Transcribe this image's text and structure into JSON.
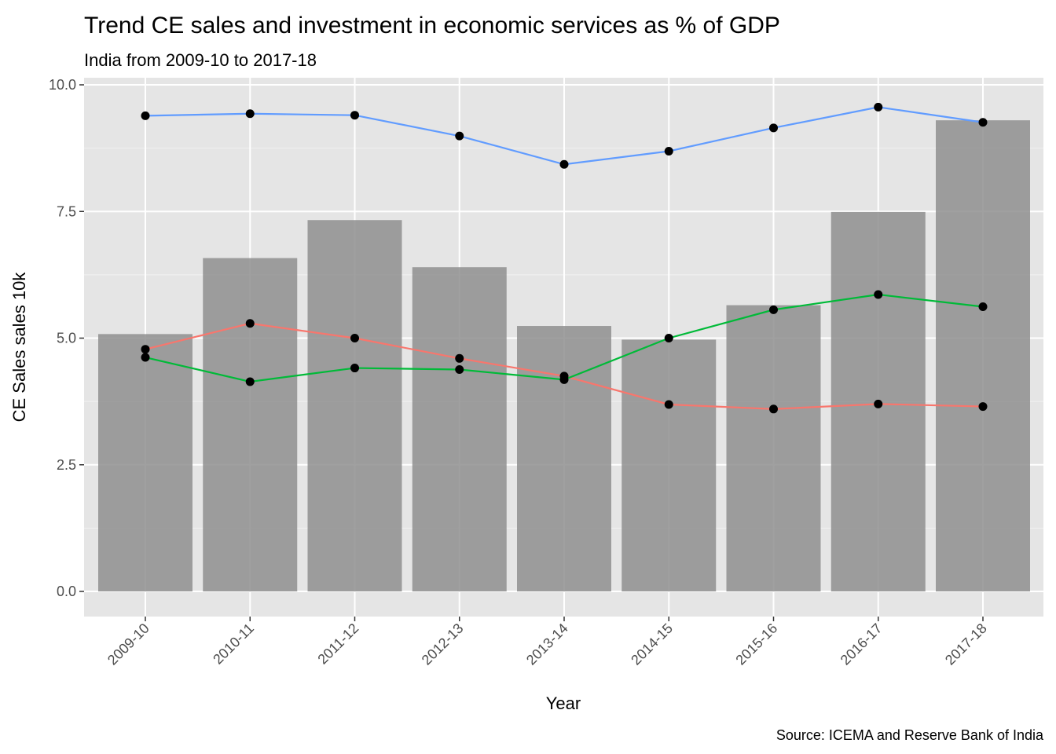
{
  "chart_data": {
    "type": "bar",
    "title": "Trend CE sales and investment in economic services as % of GDP",
    "subtitle": "India from 2009-10 to 2017-18",
    "caption": "Source: ICEMA and Reserve Bank of India",
    "xlabel": "Year",
    "ylabel": "CE Sales sales 10k",
    "categories": [
      "2009-10",
      "2010-11",
      "2011-12",
      "2012-13",
      "2013-14",
      "2014-15",
      "2015-16",
      "2016-17",
      "2017-18"
    ],
    "ylim": [
      0,
      10
    ],
    "yticks": [
      "0.0",
      "2.5",
      "5.0",
      "7.5",
      "10.0"
    ],
    "grid": true,
    "legend": "none",
    "bars": {
      "values": [
        5.08,
        6.58,
        7.33,
        6.4,
        5.24,
        4.97,
        5.65,
        7.49,
        9.3
      ],
      "color": "#999999"
    },
    "series": [
      {
        "type": "line",
        "color": "#619cff",
        "values": [
          9.39,
          9.43,
          9.4,
          8.99,
          8.43,
          8.69,
          9.15,
          9.56,
          9.26
        ]
      },
      {
        "type": "line",
        "color": "#f8766d",
        "values": [
          4.78,
          5.29,
          5.0,
          4.6,
          4.25,
          3.69,
          3.6,
          3.7,
          3.65
        ]
      },
      {
        "type": "line",
        "color": "#00ba38",
        "values": [
          4.62,
          4.14,
          4.41,
          4.38,
          4.18,
          5.0,
          5.56,
          5.86,
          5.62
        ]
      }
    ],
    "point_color": "#000000",
    "panel_background": "#e5e5e5"
  }
}
